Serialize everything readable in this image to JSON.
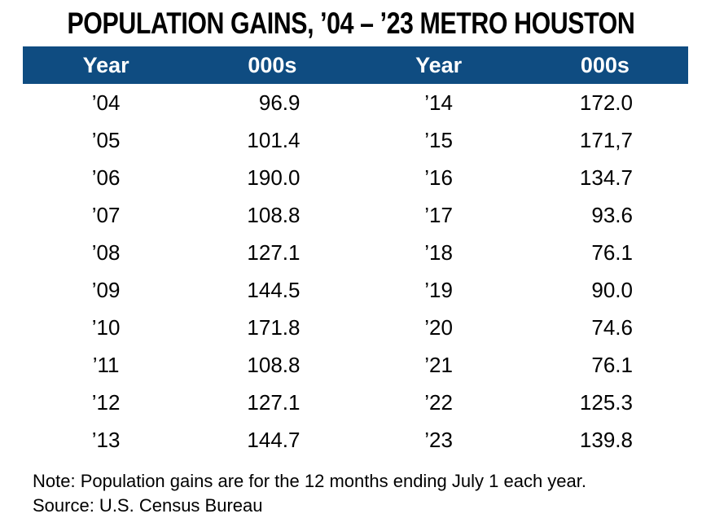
{
  "title": "POPULATION GAINS, ’04 – ’23 METRO HOUSTON",
  "table": {
    "header_bg_color": "#0F4C81",
    "header_text_color": "#FFFFFF",
    "headers": [
      "Year",
      "000s",
      "Year",
      "000s"
    ],
    "rows": [
      [
        "’04",
        "96.9",
        "’14",
        "172.0"
      ],
      [
        "’05",
        "101.4",
        "’15",
        "171,7"
      ],
      [
        "’06",
        "190.0",
        "’16",
        "134.7"
      ],
      [
        "’07",
        "108.8",
        "’17",
        "93.6"
      ],
      [
        "’08",
        "127.1",
        "’18",
        "76.1"
      ],
      [
        "’09",
        "144.5",
        "’19",
        "90.0"
      ],
      [
        "’10",
        "171.8",
        "’20",
        "74.6"
      ],
      [
        "’11",
        "108.8",
        "’21",
        "76.1"
      ],
      [
        "’12",
        "127.1",
        "’22",
        "125.3"
      ],
      [
        "’13",
        "144.7",
        "’23",
        "139.8"
      ]
    ]
  },
  "notes": {
    "note": "Note: Population gains are for the 12 months ending July 1 each year.",
    "source": "Source: U.S. Census Bureau"
  },
  "chart_data": {
    "type": "table",
    "title": "POPULATION GAINS, ’04 – ’23 METRO HOUSTON",
    "columns": [
      "Year",
      "000s",
      "Year",
      "000s"
    ],
    "series": [
      {
        "name": "Population gain (thousands)",
        "x": [
          "’04",
          "’05",
          "’06",
          "’07",
          "’08",
          "’09",
          "’10",
          "’11",
          "’12",
          "’13",
          "’14",
          "’15",
          "’16",
          "’17",
          "’18",
          "’19",
          "’20",
          "’21",
          "’22",
          "’23"
        ],
        "values": [
          96.9,
          101.4,
          190.0,
          108.8,
          127.1,
          144.5,
          171.8,
          108.8,
          127.1,
          144.7,
          172.0,
          171.7,
          134.7,
          93.6,
          76.1,
          90.0,
          74.6,
          76.1,
          125.3,
          139.8
        ]
      }
    ],
    "displayed_value_strings": [
      "96.9",
      "101.4",
      "190.0",
      "108.8",
      "127.1",
      "144.5",
      "171.8",
      "108.8",
      "127.1",
      "144.7",
      "172.0",
      "171,7",
      "134.7",
      "93.6",
      "76.1",
      "90.0",
      "74.6",
      "76.1",
      "125.3",
      "139.8"
    ],
    "note": "Note: Population gains are for the 12 months ending July 1 each year.",
    "source": "Source: U.S. Census Bureau"
  }
}
